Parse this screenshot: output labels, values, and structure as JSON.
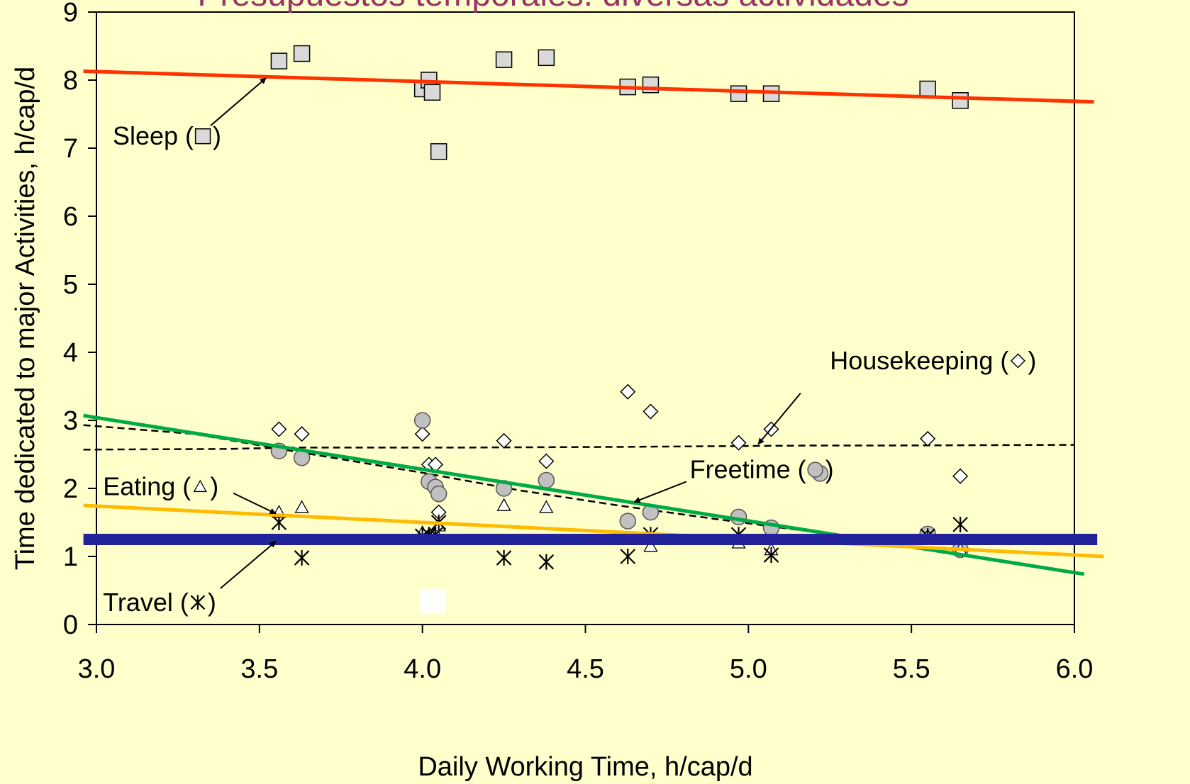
{
  "chart_data": {
    "type": "scatter",
    "title": "Presupuestos temporales: diversas actividades",
    "title_color": "#993366",
    "background": "#ffffcc",
    "xlabel": "Daily Working Time, h/cap/d",
    "ylabel": "Time dedicated to major Activities, h/cap/d",
    "xlim": [
      3.0,
      6.0
    ],
    "ylim": [
      0,
      9
    ],
    "xticks": [
      "3.0",
      "3.5",
      "4.0",
      "4.5",
      "5.0",
      "5.5",
      "6.0"
    ],
    "yticks": [
      "0",
      "1",
      "2",
      "3",
      "4",
      "5",
      "6",
      "7",
      "8",
      "9"
    ],
    "grid": false,
    "series": [
      {
        "name": "Sleep",
        "marker": "square",
        "color": "#d9d9d9",
        "points": [
          [
            3.56,
            8.28
          ],
          [
            3.63,
            8.39
          ],
          [
            4.0,
            7.87
          ],
          [
            4.02,
            8.0
          ],
          [
            4.03,
            7.82
          ],
          [
            4.05,
            6.95
          ],
          [
            4.25,
            8.3
          ],
          [
            4.38,
            8.33
          ],
          [
            4.63,
            7.9
          ],
          [
            4.7,
            7.93
          ],
          [
            4.97,
            7.8
          ],
          [
            5.07,
            7.8
          ],
          [
            5.55,
            7.87
          ],
          [
            5.65,
            7.7
          ]
        ]
      },
      {
        "name": "Housekeeping",
        "marker": "diamond",
        "color": "#ffffff",
        "points": [
          [
            3.56,
            2.87
          ],
          [
            3.63,
            2.8
          ],
          [
            4.0,
            2.8
          ],
          [
            4.02,
            2.35
          ],
          [
            4.04,
            2.35
          ],
          [
            4.05,
            1.65
          ],
          [
            4.25,
            2.7
          ],
          [
            4.38,
            2.4
          ],
          [
            4.63,
            3.42
          ],
          [
            4.7,
            3.13
          ],
          [
            4.97,
            2.67
          ],
          [
            5.07,
            2.87
          ],
          [
            5.55,
            2.73
          ],
          [
            5.65,
            2.18
          ]
        ]
      },
      {
        "name": "Freetime",
        "marker": "circle",
        "color": "#c0c0c0",
        "points": [
          [
            3.56,
            2.55
          ],
          [
            3.63,
            2.45
          ],
          [
            4.0,
            3.0
          ],
          [
            4.02,
            2.1
          ],
          [
            4.04,
            2.02
          ],
          [
            4.05,
            1.92
          ],
          [
            4.25,
            2.0
          ],
          [
            4.38,
            2.12
          ],
          [
            4.63,
            1.52
          ],
          [
            4.7,
            1.65
          ],
          [
            4.97,
            1.58
          ],
          [
            5.07,
            1.42
          ],
          [
            5.22,
            2.22
          ],
          [
            5.55,
            1.33
          ],
          [
            5.65,
            1.1
          ]
        ]
      },
      {
        "name": "Eating",
        "marker": "triangle",
        "color": "#ffffff",
        "points": [
          [
            3.56,
            1.65
          ],
          [
            3.63,
            1.72
          ],
          [
            4.0,
            1.35
          ],
          [
            4.02,
            1.3
          ],
          [
            4.04,
            1.35
          ],
          [
            4.05,
            1.45
          ],
          [
            4.25,
            1.75
          ],
          [
            4.38,
            1.72
          ],
          [
            4.7,
            1.15
          ],
          [
            4.97,
            1.2
          ],
          [
            5.07,
            1.1
          ],
          [
            5.55,
            1.3
          ],
          [
            5.65,
            1.1
          ]
        ]
      },
      {
        "name": "Travel",
        "marker": "star",
        "color": "#000000",
        "points": [
          [
            3.56,
            1.5
          ],
          [
            3.63,
            0.98
          ],
          [
            4.0,
            1.3
          ],
          [
            4.02,
            1.32
          ],
          [
            4.04,
            1.32
          ],
          [
            4.05,
            1.5
          ],
          [
            4.25,
            0.98
          ],
          [
            4.38,
            0.92
          ],
          [
            4.63,
            1.0
          ],
          [
            4.7,
            1.32
          ],
          [
            4.97,
            1.32
          ],
          [
            5.07,
            1.02
          ],
          [
            5.55,
            1.3
          ],
          [
            5.65,
            1.47
          ]
        ]
      }
    ],
    "trend_lines": [
      {
        "name": "Sleep trend",
        "color": "#ff3300",
        "width": 5,
        "points": [
          [
            2.96,
            8.13
          ],
          [
            6.06,
            7.68
          ]
        ]
      },
      {
        "name": "Freetime trend",
        "color": "#00aa44",
        "width": 5,
        "points": [
          [
            2.96,
            3.07
          ],
          [
            6.03,
            0.74
          ]
        ]
      },
      {
        "name": "Eating trend",
        "color": "#ffbb00",
        "width": 5,
        "points": [
          [
            2.96,
            1.75
          ],
          [
            6.09,
            1.0
          ]
        ]
      },
      {
        "name": "Travel trend",
        "color": "#222299",
        "width": 16,
        "points": [
          [
            2.96,
            1.25
          ],
          [
            6.07,
            1.25
          ]
        ]
      }
    ],
    "dashed_lines": [
      {
        "name": "Housekeeping fit",
        "color": "#000000",
        "points": [
          [
            2.96,
            2.57
          ],
          [
            3.4,
            2.58
          ],
          [
            3.6,
            2.6
          ],
          [
            4.1,
            2.6
          ],
          [
            4.6,
            2.61
          ],
          [
            5.2,
            2.63
          ],
          [
            5.4,
            2.63
          ],
          [
            6.0,
            2.64
          ]
        ]
      },
      {
        "name": "Freetime fit",
        "color": "#000000",
        "points": [
          [
            2.96,
            2.93
          ],
          [
            3.3,
            2.8
          ],
          [
            3.6,
            2.55
          ],
          [
            4.0,
            2.23
          ],
          [
            4.3,
            1.97
          ],
          [
            4.6,
            1.75
          ],
          [
            4.9,
            1.55
          ],
          [
            5.2,
            1.36
          ]
        ]
      }
    ],
    "annotations": [
      {
        "label": "Sleep (",
        "icon": "square",
        "close": ")",
        "text_at": [
          3.05,
          7.05
        ],
        "arrow_from": [
          3.35,
          7.33
        ],
        "arrow_to": [
          3.52,
          8.03
        ]
      },
      {
        "label": "Housekeeping (",
        "icon": "diamond",
        "close": ")",
        "text_at": [
          5.25,
          3.75
        ],
        "arrow_from": [
          5.16,
          3.4
        ],
        "arrow_to": [
          5.03,
          2.65
        ]
      },
      {
        "label": "Freetime (",
        "icon": "circle",
        "close": ")",
        "text_at": [
          4.82,
          2.15
        ],
        "arrow_from": [
          4.81,
          2.1
        ],
        "arrow_to": [
          4.65,
          1.8
        ]
      },
      {
        "label": "Eating (",
        "icon": "triangle",
        "close": ")",
        "text_at": [
          3.02,
          1.9
        ],
        "arrow_from": [
          3.42,
          1.93
        ],
        "arrow_to": [
          3.55,
          1.63
        ]
      },
      {
        "label": "Travel (",
        "icon": "star",
        "close": ")",
        "text_at": [
          3.02,
          0.2
        ],
        "arrow_from": [
          3.38,
          0.53
        ],
        "arrow_to": [
          3.55,
          1.22
        ]
      }
    ],
    "white_box": {
      "x": 4.0,
      "y": 0.35
    }
  }
}
